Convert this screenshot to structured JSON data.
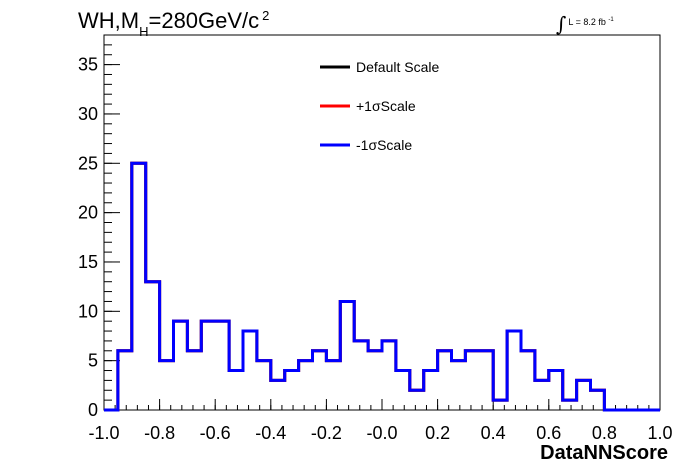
{
  "title": {
    "main": "WH,M",
    "sub": "H",
    "rest": "=280GeV/c",
    "sup": "2"
  },
  "lumi": {
    "integral": "∫",
    "text": "L = 8.2 fb",
    "sup": "-1"
  },
  "chart_data": {
    "type": "line",
    "xlabel": "DataNNScore",
    "ylabel": "",
    "xlim": [
      -1.0,
      1.0
    ],
    "ylim": [
      0,
      38
    ],
    "grid": false,
    "legend_position": "top-center",
    "x_ticks": [
      "-1.0",
      "-0.8",
      "-0.6",
      "-0.4",
      "-0.2",
      "-0.0",
      "0.2",
      "0.4",
      "0.6",
      "0.8",
      "1.0"
    ],
    "y_ticks": [
      "0",
      "5",
      "10",
      "15",
      "20",
      "25",
      "30",
      "35"
    ],
    "bin_edges": [
      -1.0,
      -0.95,
      -0.9,
      -0.85,
      -0.8,
      -0.75,
      -0.7,
      -0.65,
      -0.6,
      -0.55,
      -0.5,
      -0.45,
      -0.4,
      -0.35,
      -0.3,
      -0.25,
      -0.2,
      -0.15,
      -0.1,
      -0.05,
      0.0,
      0.05,
      0.1,
      0.15,
      0.2,
      0.25,
      0.3,
      0.35,
      0.4,
      0.45,
      0.5,
      0.55,
      0.6,
      0.65,
      0.7,
      0.75,
      0.8,
      0.85,
      0.9,
      0.95,
      1.0
    ],
    "series": [
      {
        "name": "Default Scale",
        "color": "#000000",
        "values": [
          0,
          6,
          25,
          13,
          5,
          9,
          6,
          9,
          9,
          4,
          8,
          5,
          3,
          4,
          5,
          6,
          5,
          11,
          7,
          6,
          7,
          4,
          2,
          4,
          6,
          5,
          6,
          6,
          1,
          8,
          6,
          3,
          4,
          1,
          3,
          2,
          0,
          0,
          0,
          0
        ]
      },
      {
        "name": "+1σScale",
        "color": "#ff0000",
        "values": [
          0,
          6,
          25,
          13,
          5,
          9,
          6,
          9,
          9,
          4,
          8,
          5,
          3,
          4,
          5,
          6,
          5,
          11,
          7,
          6,
          7,
          4,
          2,
          4,
          6,
          5,
          6,
          6,
          1,
          8,
          6,
          3,
          4,
          1,
          3,
          2,
          0,
          0,
          0,
          0
        ]
      },
      {
        "name": "-1σScale",
        "color": "#0000ff",
        "values": [
          0,
          6,
          25,
          13,
          5,
          9,
          6,
          9,
          9,
          4,
          8,
          5,
          3,
          4,
          5,
          6,
          5,
          11,
          7,
          6,
          7,
          4,
          2,
          4,
          6,
          5,
          6,
          6,
          1,
          8,
          6,
          3,
          4,
          1,
          3,
          2,
          0,
          0,
          0,
          0
        ]
      }
    ]
  }
}
